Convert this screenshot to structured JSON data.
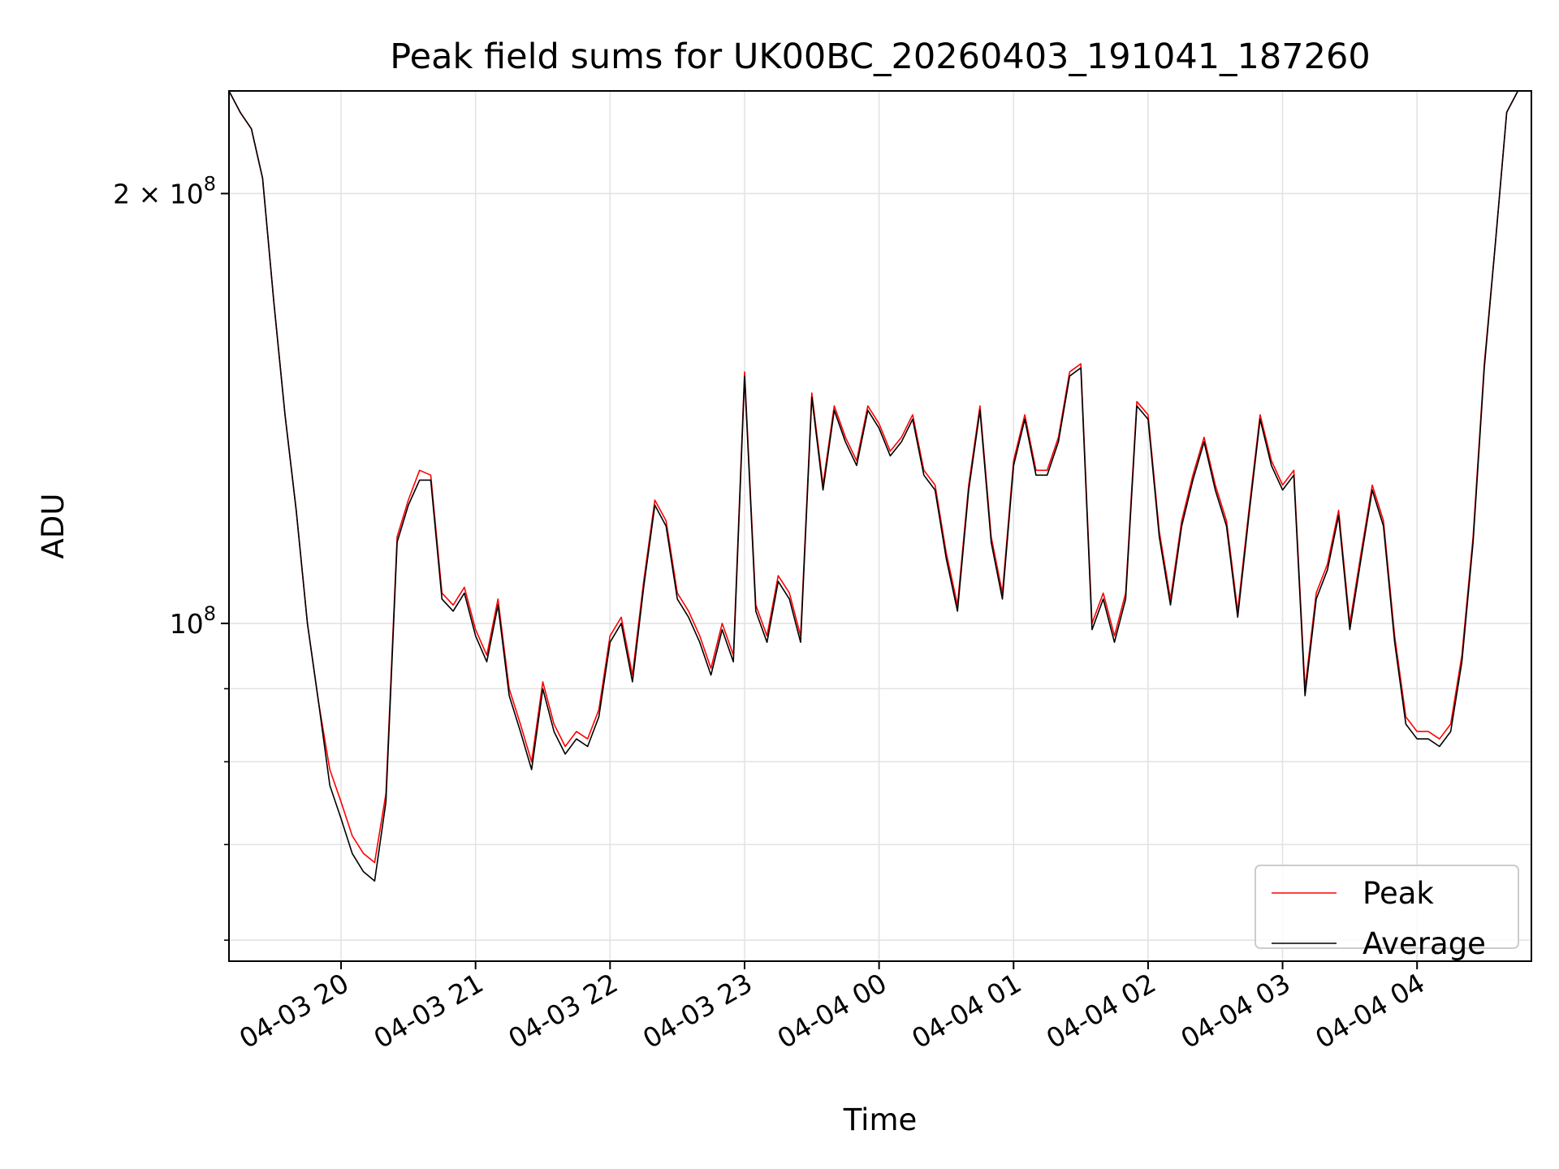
{
  "chart_data": {
    "type": "line",
    "title": "Peak field sums for UK00BC_20260403_191041_187260",
    "xlabel": "Time",
    "ylabel": "ADU",
    "yscale": "log",
    "xlim": [
      "2026-04-03 19:10",
      "2026-04-04 04:51"
    ],
    "ylim": [
      58000000,
      236000000
    ],
    "grid": true,
    "legend_position": "lower-right",
    "x_tick_labels": [
      "04-03 20",
      "04-03 21",
      "04-03 22",
      "04-03 23",
      "04-04 00",
      "04-04 01",
      "04-04 02",
      "04-04 03",
      "04-04 04"
    ],
    "x_ticks": [
      "2026-04-03 20:00",
      "2026-04-03 21:00",
      "2026-04-03 22:00",
      "2026-04-03 23:00",
      "2026-04-04 00:00",
      "2026-04-04 01:00",
      "2026-04-04 02:00",
      "2026-04-04 03:00",
      "2026-04-04 04:00"
    ],
    "y_major_ticks": [
      {
        "value": 100000000,
        "base": "10",
        "exp": "8"
      },
      {
        "value": 200000000,
        "base": "2 × 10",
        "exp": "8"
      }
    ],
    "y_minor_ticks": [
      60000000,
      70000000,
      80000000,
      90000000
    ],
    "x": [
      "19:10",
      "19:15",
      "19:20",
      "19:25",
      "19:30",
      "19:35",
      "19:40",
      "19:45",
      "19:50",
      "19:55",
      "20:00",
      "20:05",
      "20:10",
      "20:15",
      "20:20",
      "20:25",
      "20:30",
      "20:35",
      "20:40",
      "20:45",
      "20:50",
      "20:55",
      "21:00",
      "21:05",
      "21:10",
      "21:15",
      "21:20",
      "21:25",
      "21:30",
      "21:35",
      "21:40",
      "21:45",
      "21:50",
      "21:55",
      "22:00",
      "22:05",
      "22:10",
      "22:15",
      "22:20",
      "22:25",
      "22:30",
      "22:35",
      "22:40",
      "22:45",
      "22:50",
      "22:55",
      "23:00",
      "23:05",
      "23:10",
      "23:15",
      "23:20",
      "23:25",
      "23:30",
      "23:35",
      "23:40",
      "23:45",
      "23:50",
      "23:55",
      "00:00",
      "00:05",
      "00:10",
      "00:15",
      "00:20",
      "00:25",
      "00:30",
      "00:35",
      "00:40",
      "00:45",
      "00:50",
      "00:55",
      "01:00",
      "01:05",
      "01:10",
      "01:15",
      "01:20",
      "01:25",
      "01:30",
      "01:35",
      "01:40",
      "01:45",
      "01:50",
      "01:55",
      "02:00",
      "02:05",
      "02:10",
      "02:15",
      "02:20",
      "02:25",
      "02:30",
      "02:35",
      "02:40",
      "02:45",
      "02:50",
      "02:55",
      "03:00",
      "03:05",
      "03:10",
      "03:15",
      "03:20",
      "03:25",
      "03:30",
      "03:35",
      "03:40",
      "03:45",
      "03:50",
      "03:55",
      "04:00",
      "04:05",
      "04:10",
      "04:15",
      "04:20",
      "04:25",
      "04:30",
      "04:35",
      "04:40",
      "04:45",
      "04:50"
    ],
    "series": [
      {
        "name": "Peak",
        "color": "#ff0000",
        "values": [
          236,
          228,
          222,
          205,
          168,
          140,
          120,
          100,
          88,
          79,
          75,
          71,
          69,
          68,
          76,
          115,
          122,
          128,
          127,
          105,
          103,
          106,
          99,
          95,
          104,
          90,
          85,
          80,
          91,
          85,
          82,
          84,
          83,
          87,
          98,
          101,
          92,
          107,
          122,
          118,
          105,
          102,
          98,
          93,
          100,
          95,
          150,
          103,
          98,
          108,
          105,
          98,
          145,
          125,
          142,
          135,
          130,
          142,
          138,
          132,
          135,
          140,
          128,
          125,
          112,
          103,
          125,
          142,
          115,
          105,
          130,
          140,
          128,
          128,
          135,
          150,
          152,
          100,
          105,
          98,
          105,
          143,
          140,
          116,
          104,
          118,
          127,
          135,
          125,
          118,
          102,
          120,
          140,
          130,
          125,
          128,
          90,
          105,
          110,
          120,
          100,
          112,
          125,
          118,
          98,
          86,
          84,
          84,
          83,
          85,
          95,
          115,
          152,
          185,
          228,
          236,
          236
        ],
        "unit": "ADU"
      },
      {
        "name": "Average",
        "color": "#000000",
        "values": [
          236,
          228,
          222,
          205,
          168,
          140,
          120,
          100,
          88,
          77,
          73,
          69,
          67,
          66,
          75,
          114,
          121,
          126,
          126,
          104,
          102,
          105,
          98,
          94,
          103,
          89,
          84,
          79,
          90,
          84,
          81,
          83,
          82,
          86,
          97,
          100,
          91,
          106,
          121,
          117,
          104,
          101,
          97,
          92,
          99,
          94,
          149,
          102,
          97,
          107,
          104,
          97,
          144,
          124,
          141,
          134,
          129,
          141,
          137,
          131,
          134,
          139,
          127,
          124,
          111,
          102,
          124,
          141,
          114,
          104,
          129,
          139,
          127,
          127,
          134,
          149,
          151,
          99,
          104,
          97,
          104,
          142,
          139,
          115,
          103,
          117,
          126,
          134,
          124,
          117,
          101,
          119,
          139,
          129,
          124,
          127,
          89,
          104,
          109,
          119,
          99,
          111,
          124,
          117,
          97,
          85,
          83,
          83,
          82,
          84,
          94,
          114,
          151,
          185,
          228,
          236,
          236
        ],
        "unit": "ADU"
      }
    ],
    "values_scale": 1000000
  }
}
